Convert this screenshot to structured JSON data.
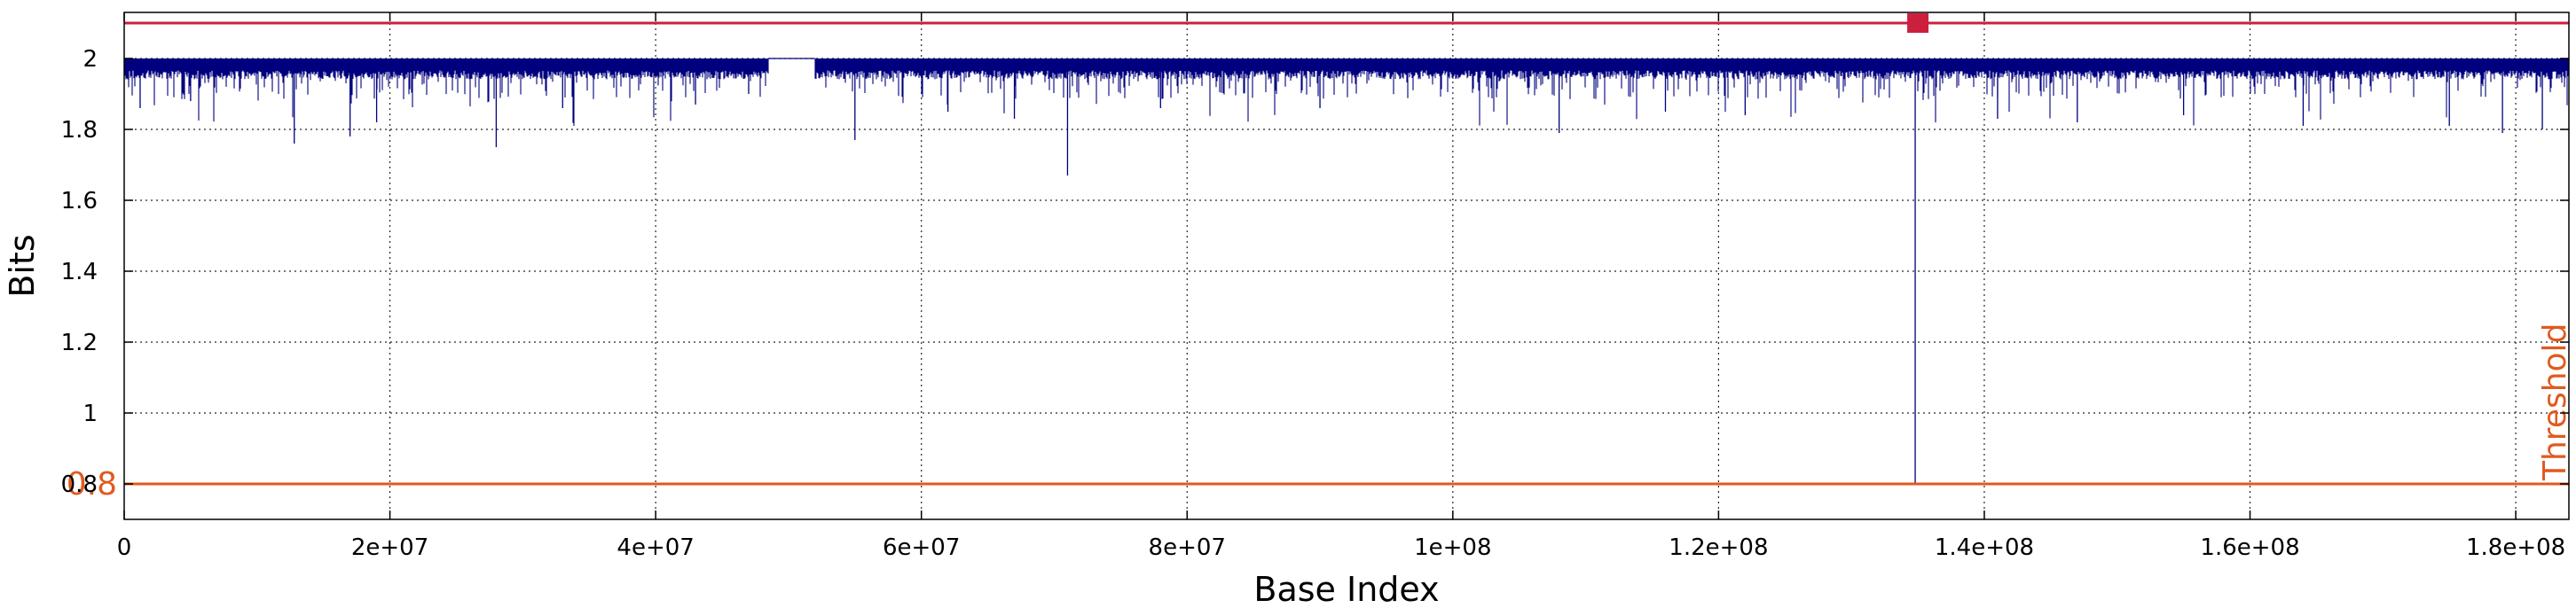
{
  "chart_data": {
    "type": "line",
    "xlabel": "Base Index",
    "ylabel": "Bits",
    "xlim": [
      0,
      184000000
    ],
    "ylim": [
      0.7,
      2.13
    ],
    "x_ticks": [
      0,
      20000000,
      40000000,
      60000000,
      80000000,
      100000000,
      120000000,
      140000000,
      160000000,
      180000000
    ],
    "x_tick_labels": [
      "0",
      "2e+07",
      "4e+07",
      "6e+07",
      "8e+07",
      "1e+08",
      "1.2e+08",
      "1.4e+08",
      "1.6e+08",
      "1.8e+08"
    ],
    "y_ticks": [
      0.8,
      1.0,
      1.2,
      1.4,
      1.6,
      1.8,
      2.0
    ],
    "y_tick_labels": [
      "0.8",
      "1",
      "1.2",
      "1.4",
      "1.6",
      "1.8",
      "2"
    ],
    "grid": true,
    "series": [
      {
        "color": "#00007f",
        "baseline": 2.0,
        "band_floor": 1.96,
        "gap_x": [
          48500000,
          52000000
        ],
        "dips": [
          {
            "x": 1200000,
            "y": 1.86
          },
          {
            "x": 5000000,
            "y": 1.88
          },
          {
            "x": 12800000,
            "y": 1.76
          },
          {
            "x": 17000000,
            "y": 1.78
          },
          {
            "x": 19000000,
            "y": 1.82
          },
          {
            "x": 28000000,
            "y": 1.75
          },
          {
            "x": 33000000,
            "y": 1.86
          },
          {
            "x": 43000000,
            "y": 1.87
          },
          {
            "x": 47000000,
            "y": 1.9
          },
          {
            "x": 55000000,
            "y": 1.77
          },
          {
            "x": 62000000,
            "y": 1.85
          },
          {
            "x": 67000000,
            "y": 1.83
          },
          {
            "x": 71000000,
            "y": 1.67
          },
          {
            "x": 78000000,
            "y": 1.86
          },
          {
            "x": 90000000,
            "y": 1.86
          },
          {
            "x": 108000000,
            "y": 1.79
          },
          {
            "x": 116000000,
            "y": 1.85
          },
          {
            "x": 122000000,
            "y": 1.84
          },
          {
            "x": 134800000,
            "y": 0.8
          },
          {
            "x": 141000000,
            "y": 1.83
          },
          {
            "x": 147000000,
            "y": 1.82
          },
          {
            "x": 155000000,
            "y": 1.84
          },
          {
            "x": 164000000,
            "y": 1.81
          },
          {
            "x": 175000000,
            "y": 1.81
          },
          {
            "x": 179000000,
            "y": 1.79
          },
          {
            "x": 182000000,
            "y": 1.8
          }
        ]
      }
    ],
    "reference_lines": [
      {
        "y": 2.1,
        "color": "#cc1f3e"
      },
      {
        "y": 0.8,
        "color": "#e05a1f",
        "label": "Threshold",
        "value_label": "0.8"
      }
    ],
    "markers": [
      {
        "x": 135000000,
        "y": 2.1,
        "color": "#cc1f3e",
        "shape": "square"
      }
    ]
  }
}
